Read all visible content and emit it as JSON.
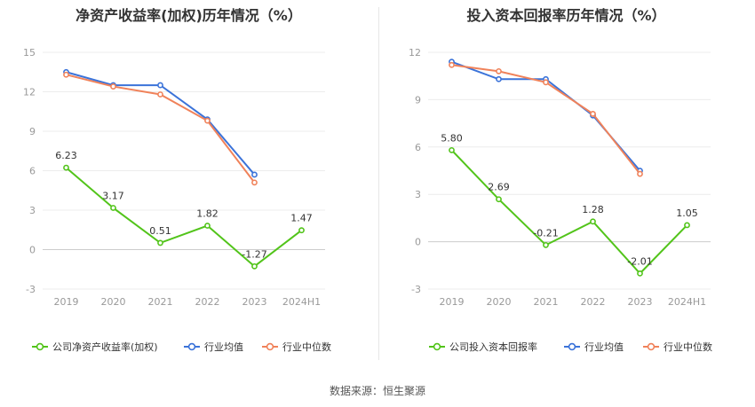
{
  "source": "数据来源：恒生聚源",
  "chart_data": [
    {
      "type": "line",
      "title": "净资产收益率(加权)历年情况（%）",
      "categories": [
        "2019",
        "2020",
        "2021",
        "2022",
        "2023",
        "2024H1"
      ],
      "ylim": [
        -3,
        15
      ],
      "yticks": [
        -3,
        0,
        3,
        6,
        9,
        12,
        15
      ],
      "grid": true,
      "legend_position": "bottom",
      "series": [
        {
          "name": "公司净资产收益率(加权)",
          "color": "#52c41a",
          "labeled": true,
          "values": [
            6.23,
            3.17,
            0.51,
            1.82,
            -1.27,
            1.47
          ],
          "labels": [
            "6.23",
            "3.17",
            "0.51",
            "1.82",
            "-1.27",
            "1.47"
          ]
        },
        {
          "name": "行业均值",
          "color": "#3b73d9",
          "labeled": false,
          "values": [
            13.5,
            12.5,
            12.5,
            9.9,
            5.7,
            null
          ]
        },
        {
          "name": "行业中位数",
          "color": "#f0825a",
          "labeled": false,
          "values": [
            13.3,
            12.4,
            11.8,
            9.8,
            5.1,
            null
          ]
        }
      ]
    },
    {
      "type": "line",
      "title": "投入资本回报率历年情况（%）",
      "categories": [
        "2019",
        "2020",
        "2021",
        "2022",
        "2023",
        "2024H1"
      ],
      "ylim": [
        -3,
        12
      ],
      "yticks": [
        -3,
        0,
        3,
        6,
        9,
        12
      ],
      "grid": true,
      "legend_position": "bottom",
      "series": [
        {
          "name": "公司投入资本回报率",
          "color": "#52c41a",
          "labeled": true,
          "values": [
            5.8,
            2.69,
            -0.21,
            1.28,
            -2.01,
            1.05
          ],
          "labels": [
            "5.80",
            "2.69",
            "-0.21",
            "1.28",
            "-2.01",
            "1.05"
          ]
        },
        {
          "name": "行业均值",
          "color": "#3b73d9",
          "labeled": false,
          "values": [
            11.4,
            10.3,
            10.3,
            8.0,
            4.5,
            null
          ]
        },
        {
          "name": "行业中位数",
          "color": "#f0825a",
          "labeled": false,
          "values": [
            11.2,
            10.8,
            10.1,
            8.1,
            4.3,
            null
          ]
        }
      ]
    }
  ]
}
